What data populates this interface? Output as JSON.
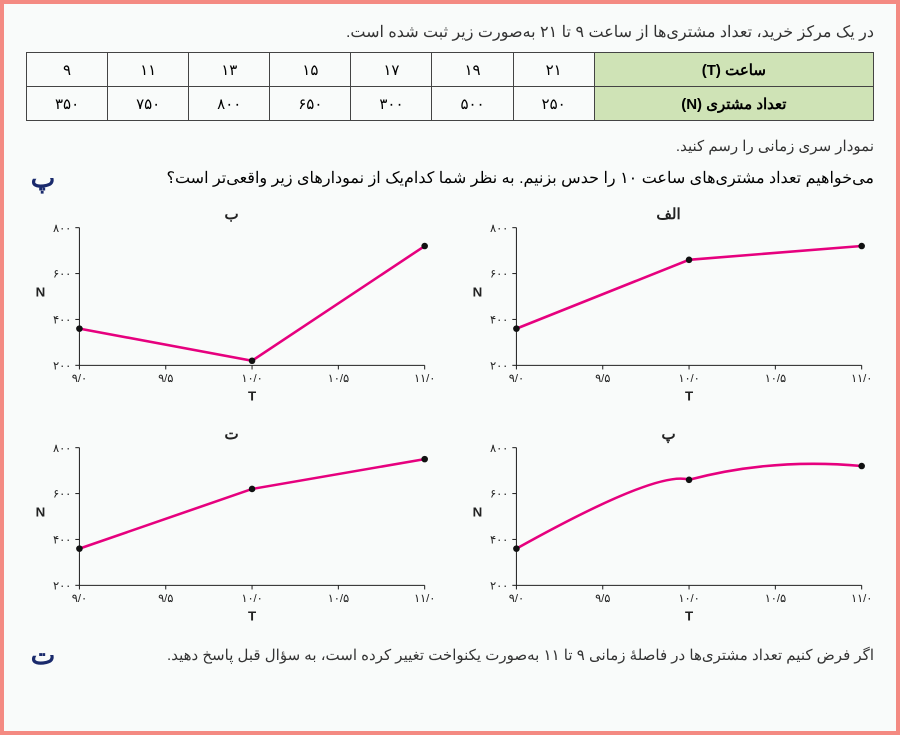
{
  "intro": "در یک مرکز خرید، تعداد مشتری‌ها از ساعت ۹ تا ۲۱ به‌صورت زیر ثبت شده است.",
  "table": {
    "header_time": "ساعت (T)",
    "header_count": "تعداد مشتری (N)",
    "times": [
      "۲۱",
      "۱۹",
      "۱۷",
      "۱۵",
      "۱۳",
      "۱۱",
      "۹"
    ],
    "counts": [
      "۲۵۰",
      "۵۰۰",
      "۳۰۰",
      "۶۵۰",
      "۸۰۰",
      "۷۵۰",
      "۳۵۰"
    ]
  },
  "line1": "نمودار سری زمانی را رسم کنید.",
  "qmark_peh": "پ",
  "line2": "می‌خواهیم تعداد مشتری‌های ساعت ۱۰ را حدس بزنیم. به نظر شما کدام‌یک از نمودارهای زیر واقعی‌تر است؟",
  "qmark_te": "ت",
  "line3": "اگر فرض کنیم تعداد مشتری‌ها در فاصلهٔ زمانی ۹ تا ۱۱ به‌صورت یکنواخت تغییر کرده است، به سؤال قبل پاسخ دهید.",
  "axes": {
    "x_label": "T",
    "y_label": "N",
    "x_ticks": [
      "۹/۰",
      "۹/۵",
      "۱۰/۰",
      "۱۰/۵",
      "۱۱/۰"
    ],
    "y_ticks": [
      "۲۰۰",
      "۴۰۰",
      "۶۰۰",
      "۸۰۰"
    ],
    "xlim": [
      9,
      11
    ],
    "ylim": [
      200,
      800
    ],
    "series_color": "#e6007e",
    "axis_color": "#222222",
    "background": "#f9fbfa"
  },
  "charts": [
    {
      "id": "alef",
      "label": "الف",
      "type": "line",
      "points": [
        [
          9,
          360
        ],
        [
          10,
          660
        ],
        [
          11,
          720
        ]
      ],
      "curve": "straight"
    },
    {
      "id": "be",
      "label": "ب",
      "type": "line",
      "points": [
        [
          9,
          360
        ],
        [
          10,
          220
        ],
        [
          11,
          720
        ]
      ],
      "curve": "straight"
    },
    {
      "id": "pe",
      "label": "پ",
      "type": "curve",
      "points": [
        [
          9,
          360
        ],
        [
          10,
          660
        ],
        [
          11,
          720
        ]
      ],
      "curve": "smooth"
    },
    {
      "id": "te",
      "label": "ت",
      "type": "line",
      "points": [
        [
          9,
          360
        ],
        [
          10,
          620
        ],
        [
          11,
          750
        ]
      ],
      "curve": "straight"
    }
  ]
}
